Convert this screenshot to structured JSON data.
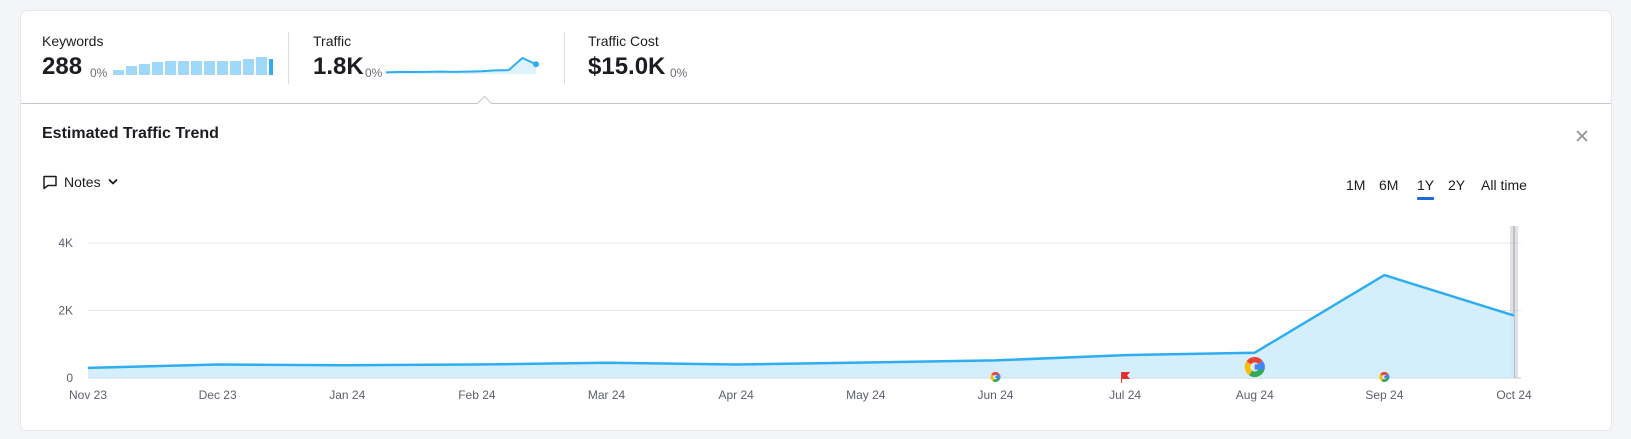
{
  "summary": {
    "keywords": {
      "label": "Keywords",
      "value": "288",
      "change": "0%",
      "bars": [
        3,
        5,
        6,
        7,
        8,
        8,
        8,
        8,
        8,
        8,
        9,
        10,
        9
      ]
    },
    "traffic": {
      "label": "Traffic",
      "value": "1.8K",
      "change": "0%"
    },
    "traffic_cost": {
      "label": "Traffic Cost",
      "value": "$15.0K",
      "change": "0%"
    }
  },
  "panel": {
    "title": "Estimated Traffic Trend",
    "notes_label": "Notes",
    "ranges": [
      {
        "label": "1M",
        "active": false
      },
      {
        "label": "6M",
        "active": false
      },
      {
        "label": "1Y",
        "active": true
      },
      {
        "label": "2Y",
        "active": false
      },
      {
        "label": "All time",
        "active": false
      }
    ]
  },
  "colors": {
    "line": "#2eaef0",
    "area": "#d0ecfb",
    "accent": "#1d6bd8",
    "keyword_bar": "#9fd8f8",
    "keyword_bar_last": "#2eaef0"
  },
  "chart_data": {
    "type": "area",
    "title": "Estimated Traffic Trend",
    "categories": [
      "Nov 23",
      "Dec 23",
      "Jan 24",
      "Feb 24",
      "Mar 24",
      "Apr 24",
      "May 24",
      "Jun 24",
      "Jul 24",
      "Aug 24",
      "Sep 24",
      "Oct 24"
    ],
    "series": [
      {
        "values": [
          300,
          400,
          380,
          400,
          450,
          400,
          460,
          520,
          680,
          750,
          3050,
          1850
        ]
      }
    ],
    "y_ticks": [
      {
        "value": 0,
        "label": "0"
      },
      {
        "value": 2000,
        "label": "2K"
      },
      {
        "value": 4000,
        "label": "4K"
      }
    ],
    "ylim": [
      0,
      4500
    ],
    "grid": true,
    "markers": [
      {
        "month": "Jun 24",
        "icon": "google-icon",
        "size": "small"
      },
      {
        "month": "Jul 24",
        "icon": "flag-icon",
        "size": "small"
      },
      {
        "month": "Aug 24",
        "icon": "google-icon",
        "size": "large"
      },
      {
        "month": "Sep 24",
        "icon": "google-icon",
        "size": "small"
      }
    ]
  }
}
